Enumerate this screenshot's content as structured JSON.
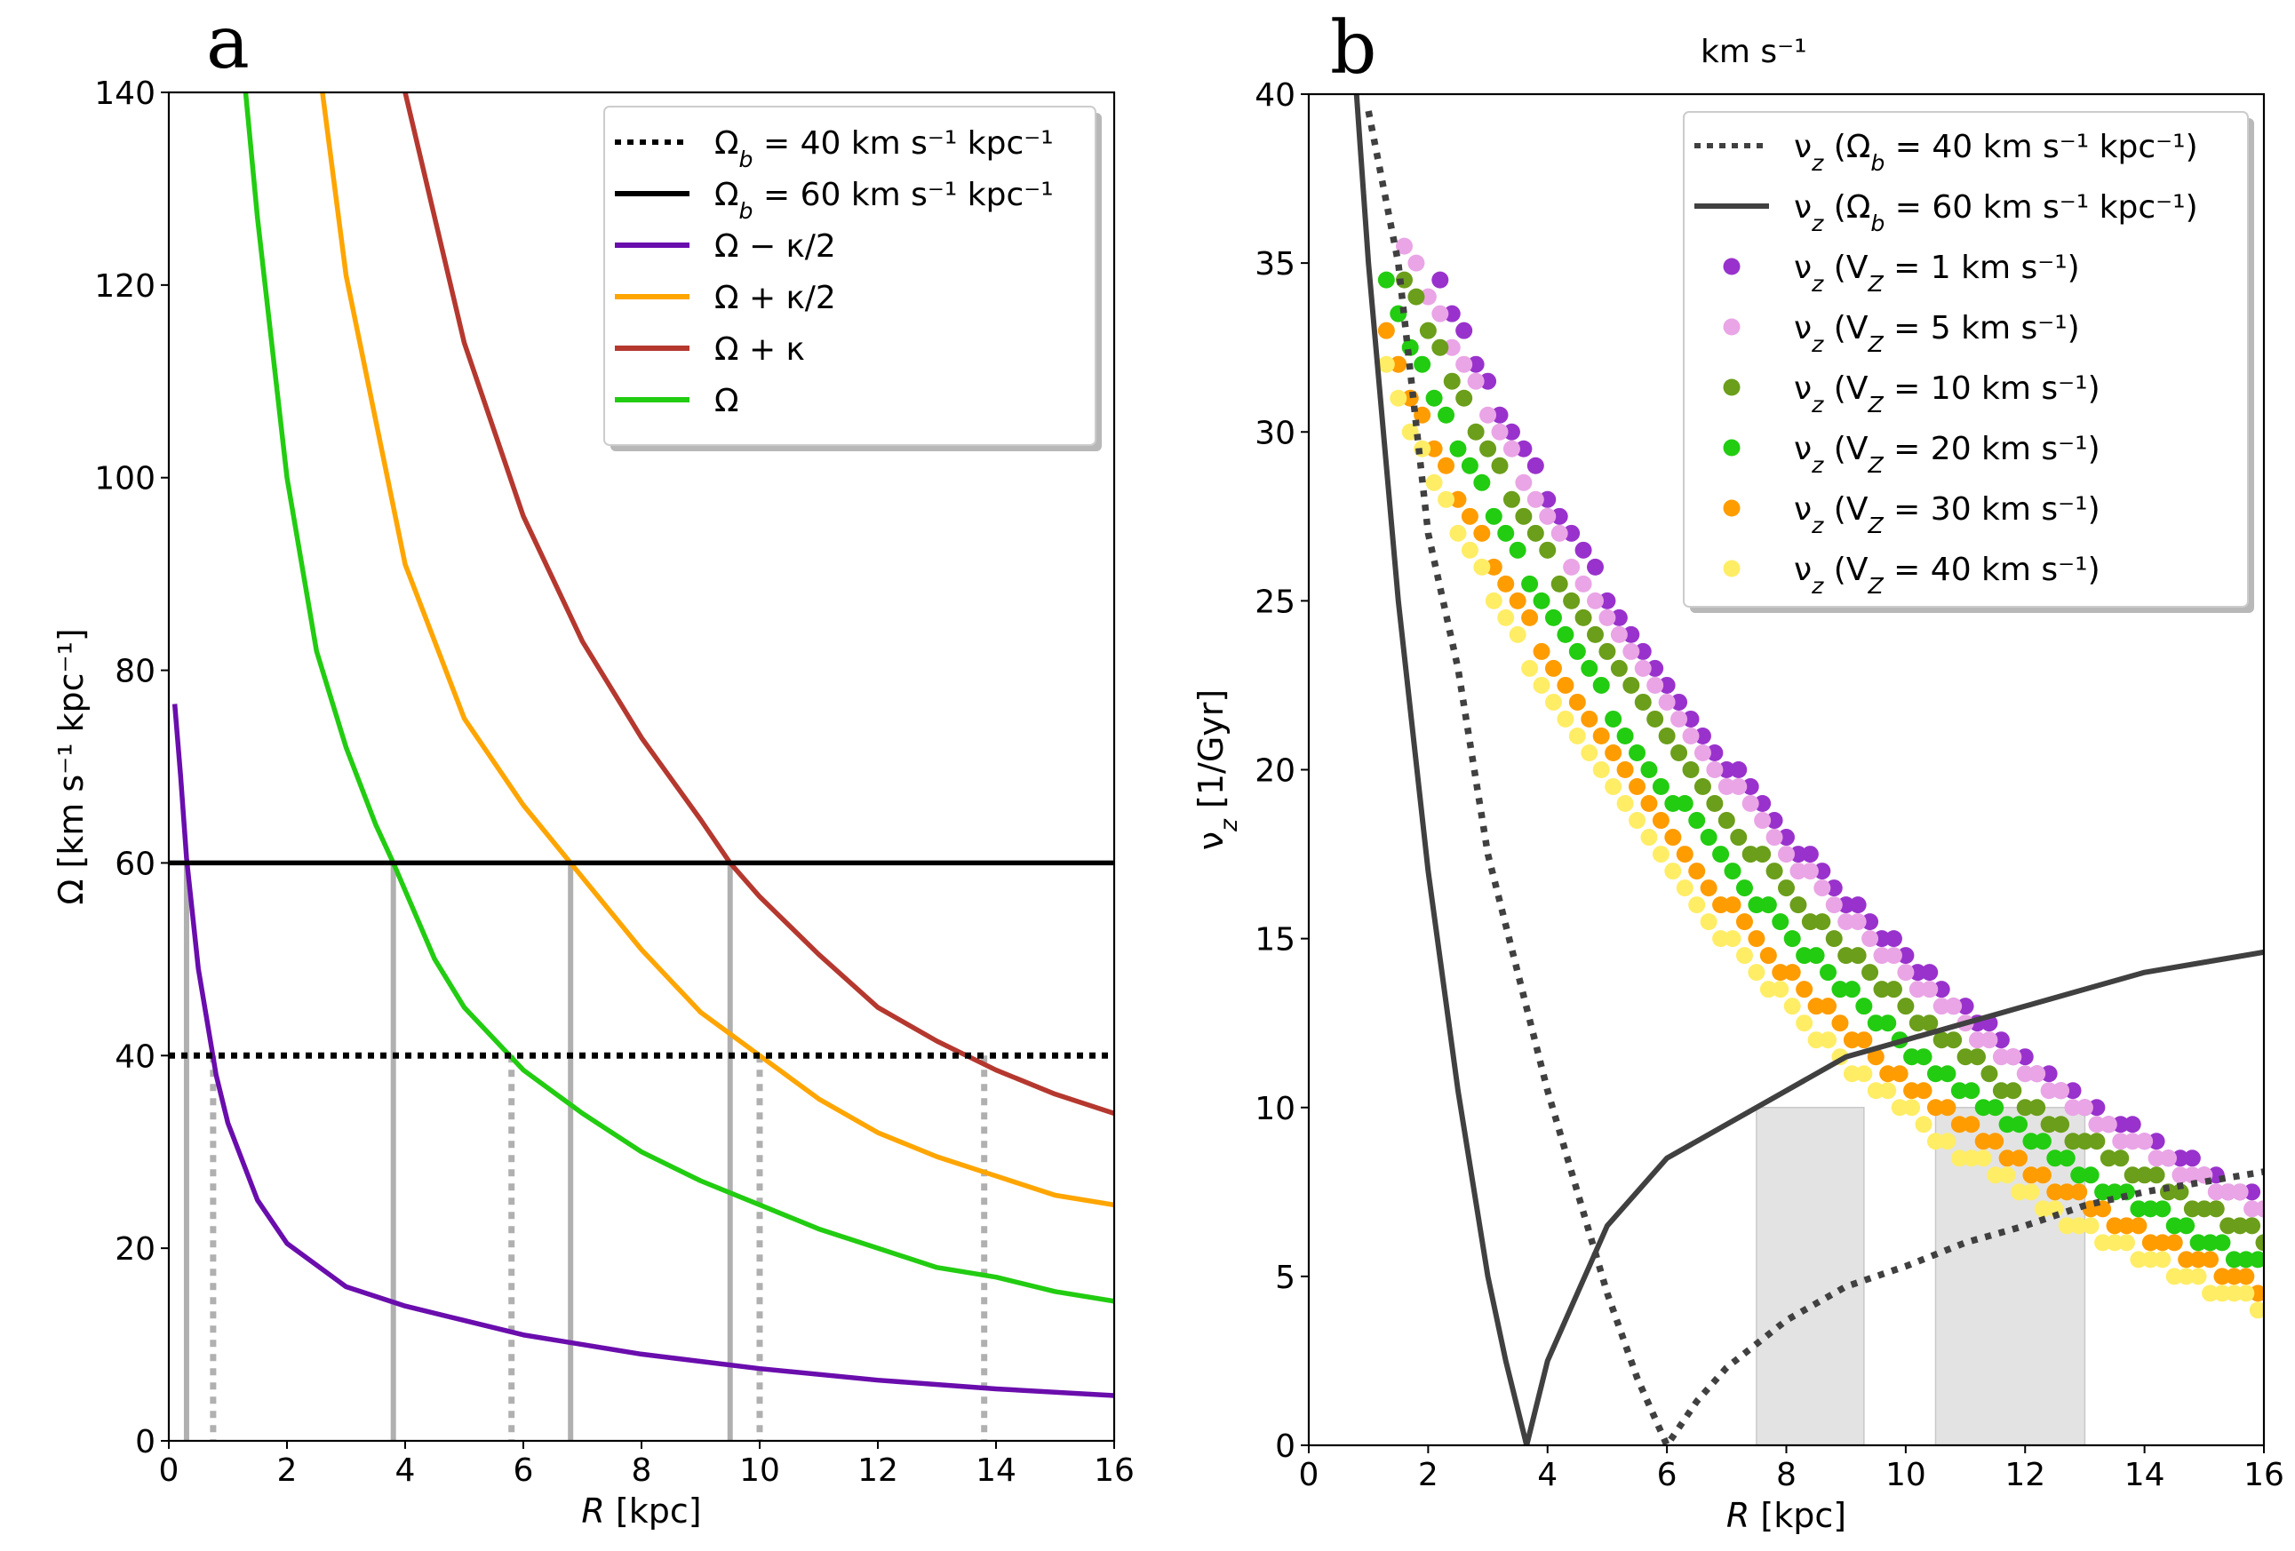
{
  "chart_data": [
    {
      "panel": "a",
      "type": "line",
      "xlabel": "R [kpc]",
      "ylabel": "Ω [km s⁻¹ kpc⁻¹]",
      "xlim": [
        0,
        16
      ],
      "ylim": [
        0,
        140
      ],
      "xticks": [
        0,
        2,
        4,
        6,
        8,
        10,
        12,
        14,
        16
      ],
      "yticks": [
        0,
        20,
        40,
        60,
        80,
        100,
        120,
        140
      ],
      "legend_position": "top-right",
      "legend": [
        {
          "label": "Ω_b = 40 km s⁻¹ kpc⁻¹",
          "color": "#000000",
          "style": "dotted"
        },
        {
          "label": "Ω_b = 60 km s⁻¹ kpc⁻¹",
          "color": "#000000",
          "style": "solid"
        },
        {
          "label": "Ω − κ/2",
          "color": "#6a0dad",
          "style": "solid"
        },
        {
          "label": "Ω + κ/2",
          "color": "#ffa500",
          "style": "solid"
        },
        {
          "label": "Ω + κ",
          "color": "#b5382f",
          "style": "solid"
        },
        {
          "label": "Ω",
          "color": "#22cc11",
          "style": "solid"
        }
      ],
      "series": [
        {
          "name": "Ω − κ/2",
          "color": "#6a0dad",
          "x": [
            0.1,
            0.2,
            0.3,
            0.5,
            0.8,
            1.0,
            1.5,
            2.0,
            3.0,
            4.0,
            5.0,
            6.0,
            7.0,
            8.0,
            10.0,
            12.0,
            14.0,
            16.0
          ],
          "y": [
            76.5,
            69,
            60.5,
            49,
            38,
            33,
            25,
            20.5,
            16,
            14,
            12.5,
            11,
            10,
            9,
            7.5,
            6.3,
            5.4,
            4.7
          ]
        },
        {
          "name": "Ω + κ/2",
          "color": "#ffa500",
          "x": [
            2.6,
            3.0,
            4.0,
            5.0,
            6.0,
            6.8,
            8.0,
            9.0,
            10.0,
            11.0,
            12.0,
            13.0,
            14.0,
            15.0,
            16.0
          ],
          "y": [
            140,
            121,
            91,
            75,
            66,
            60,
            51,
            44.5,
            40,
            35.5,
            32,
            29.5,
            27.5,
            25.5,
            24.5
          ]
        },
        {
          "name": "Ω + κ",
          "color": "#b5382f",
          "x": [
            4.0,
            5.0,
            6.0,
            7.0,
            8.0,
            9.0,
            9.5,
            10.0,
            11.0,
            12.0,
            13.0,
            14.0,
            15.0,
            16.0
          ],
          "y": [
            140,
            114,
            96,
            83,
            73,
            64.5,
            60,
            56.5,
            50.5,
            45,
            41.5,
            38.5,
            36,
            34
          ]
        },
        {
          "name": "Ω",
          "color": "#22cc11",
          "x": [
            1.3,
            1.5,
            2.0,
            2.5,
            3.0,
            3.5,
            3.8,
            4.5,
            5.0,
            6.0,
            7.0,
            8.0,
            9.0,
            10.0,
            11.0,
            12.0,
            13.0,
            14.0,
            15.0,
            16.0
          ],
          "y": [
            140,
            127,
            100,
            82,
            72,
            64,
            60,
            50,
            45,
            38.5,
            34,
            30,
            27,
            24.5,
            22,
            20,
            18,
            17,
            15.5,
            14.5
          ]
        },
        {
          "name": "Ω_b = 60 km s⁻¹ kpc⁻¹",
          "color": "#000000",
          "style": "solid",
          "x": [
            0,
            16
          ],
          "y": [
            60,
            60
          ]
        },
        {
          "name": "Ω_b = 40 km s⁻¹ kpc⁻¹",
          "color": "#000000",
          "style": "dotted",
          "x": [
            0,
            16
          ],
          "y": [
            40,
            40
          ]
        }
      ],
      "resonance_markers": {
        "solid_at_60": [
          0.3,
          3.8,
          6.8,
          9.5
        ],
        "dotted_at_40": [
          0.75,
          5.8,
          10.0,
          13.8
        ]
      }
    },
    {
      "panel": "b",
      "type": "scatter",
      "xlabel": "R [kpc]",
      "ylabel": "ν_z [1/Gyr]",
      "xlim": [
        0,
        16
      ],
      "ylim": [
        0,
        40
      ],
      "xticks": [
        0,
        2,
        4,
        6,
        8,
        10,
        12,
        14,
        16
      ],
      "yticks": [
        0,
        5,
        10,
        15,
        20,
        25,
        30,
        35,
        40
      ],
      "legend_position": "top-right",
      "top_annotation": "km s⁻¹",
      "legend": [
        {
          "label": "ν_z (Ω_b = 40 km s⁻¹ kpc⁻¹)",
          "color": "#404040",
          "style": "dotted"
        },
        {
          "label": "ν_z (Ω_b = 60 km s⁻¹ kpc⁻¹)",
          "color": "#404040",
          "style": "solid"
        },
        {
          "label": "ν_z (V_Z = 1 km s⁻¹)",
          "color": "#9932cc",
          "style": "marker"
        },
        {
          "label": "ν_z (V_Z = 5 km s⁻¹)",
          "color": "#eaa5e6",
          "style": "marker"
        },
        {
          "label": "ν_z (V_Z = 10 km s⁻¹)",
          "color": "#6b9e1a",
          "style": "marker"
        },
        {
          "label": "ν_z (V_Z = 20 km s⁻¹)",
          "color": "#22cc11",
          "style": "marker"
        },
        {
          "label": "ν_z (V_Z = 30 km s⁻¹)",
          "color": "#ff9c00",
          "style": "marker"
        },
        {
          "label": "ν_z (V_Z = 40 km s⁻¹)",
          "color": "#ffed66",
          "style": "marker"
        }
      ],
      "shaded_regions_x": [
        [
          7.5,
          9.3
        ],
        [
          10.5,
          13.0
        ]
      ],
      "lines": [
        {
          "name": "ν_z (Ω_b = 60 km s⁻¹ kpc⁻¹)",
          "color": "#404040",
          "style": "solid",
          "x": [
            0.8,
            1.0,
            1.5,
            2.0,
            2.5,
            3.0,
            3.3,
            3.65,
            4.0,
            5.0,
            6.0,
            7.0,
            8.0,
            9.0,
            10.0,
            11.0,
            12.0,
            13.0,
            14.0,
            15.0,
            16.0
          ],
          "y": [
            40,
            35,
            25,
            17,
            10.5,
            5,
            2.5,
            0,
            2.5,
            6.5,
            8.5,
            9.5,
            10.5,
            11.5,
            12,
            12.5,
            13,
            13.5,
            14,
            14.3,
            14.6
          ]
        },
        {
          "name": "ν_z (Ω_b = 40 km s⁻¹ kpc⁻¹)",
          "color": "#404040",
          "style": "dotted",
          "x": [
            1.0,
            1.5,
            2.0,
            2.5,
            3.0,
            3.5,
            4.0,
            4.5,
            5.0,
            5.5,
            6.0,
            6.5,
            7.0,
            8.0,
            9.0,
            10.0,
            11.0,
            12.0,
            13.0,
            14.0,
            15.0,
            16.0
          ],
          "y": [
            39.5,
            35,
            27,
            23,
            17.5,
            14,
            10.5,
            7.5,
            4.5,
            2,
            0,
            1.3,
            2.3,
            3.7,
            4.7,
            5.3,
            6,
            6.5,
            7.1,
            7.5,
            7.8,
            8.1
          ]
        }
      ],
      "series": [
        {
          "name": "V_Z = 1 km s⁻¹",
          "color": "#9932cc",
          "x0": 2.2,
          "x1": 16.0,
          "a": 39,
          "b": 0.105
        },
        {
          "name": "V_Z = 5 km s⁻¹",
          "color": "#eaa5e6",
          "x0": 1.6,
          "x1": 16.0,
          "a": 38,
          "b": 0.105
        },
        {
          "name": "V_Z = 10 km s⁻¹",
          "color": "#6b9e1a",
          "x0": 1.6,
          "x1": 16.0,
          "a": 37,
          "b": 0.11
        },
        {
          "name": "V_Z = 20 km s⁻¹",
          "color": "#22cc11",
          "x0": 1.3,
          "x1": 16.0,
          "a": 35.5,
          "b": 0.115
        },
        {
          "name": "V_Z = 30 km s⁻¹",
          "color": "#ff9c00",
          "x0": 1.3,
          "x1": 16.0,
          "a": 34,
          "b": 0.12
        },
        {
          "name": "V_Z = 40 km s⁻¹",
          "color": "#ffed66",
          "x0": 1.3,
          "x1": 16.0,
          "a": 33,
          "b": 0.125
        }
      ]
    }
  ]
}
